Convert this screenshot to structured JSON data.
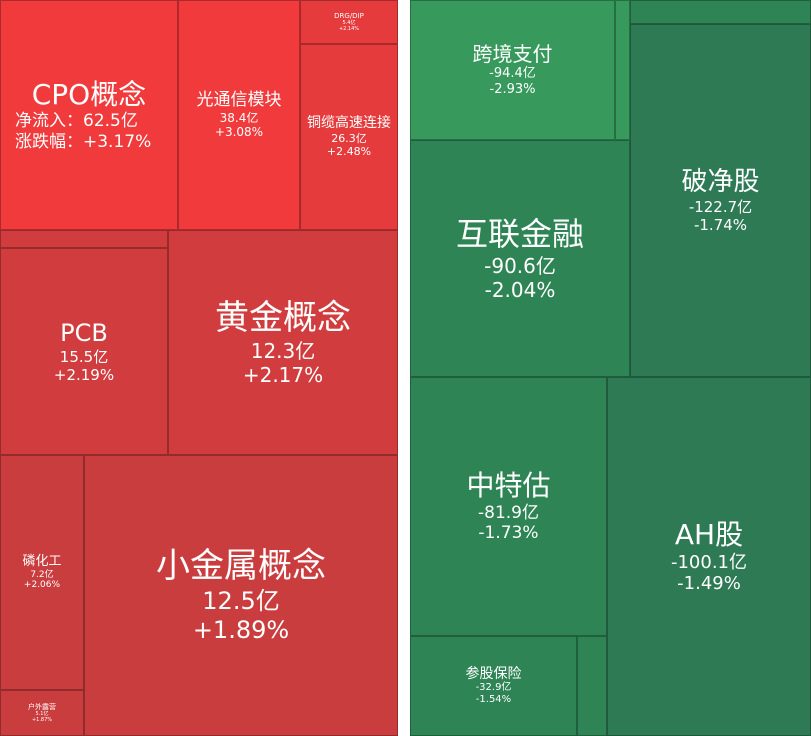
{
  "left_panel": {
    "tiles": [
      {
        "name": "CPO概念",
        "flow_label": "净流入：",
        "flow": "62.5亿",
        "change_label": "涨跌幅：",
        "change": "+3.17%"
      },
      {
        "name": "光通信模块",
        "flow": "38.4亿",
        "change": "+3.08%"
      },
      {
        "name": "DRG/DIP",
        "flow": "5.4亿",
        "change": "+2.14%"
      },
      {
        "name": "铜缆高速连接",
        "flow": "26.3亿",
        "change": "+2.48%"
      },
      {
        "name": "PCB",
        "flow": "15.5亿",
        "change": "+2.19%"
      },
      {
        "name": "黄金概念",
        "flow": "12.3亿",
        "change": "+2.17%"
      },
      {
        "name": "磷化工",
        "flow": "7.2亿",
        "change": "+2.06%"
      },
      {
        "name": "户外露营",
        "flow": "5.1亿",
        "change": "+1.87%"
      },
      {
        "name": "小金属概念",
        "flow": "12.5亿",
        "change": "+1.89%"
      }
    ]
  },
  "right_panel": {
    "tiles": [
      {
        "name": "跨境支付",
        "flow": "-94.4亿",
        "change": "-2.93%"
      },
      {
        "name": "破净股",
        "flow": "-122.7亿",
        "change": "-1.74%"
      },
      {
        "name": "互联金融",
        "flow": "-90.6亿",
        "change": "-2.04%"
      },
      {
        "name": "中特估",
        "flow": "-81.9亿",
        "change": "-1.73%"
      },
      {
        "name": "AH股",
        "flow": "-100.1亿",
        "change": "-1.49%"
      },
      {
        "name": "参股保险",
        "flow": "-32.9亿",
        "change": "-1.54%"
      }
    ]
  }
}
